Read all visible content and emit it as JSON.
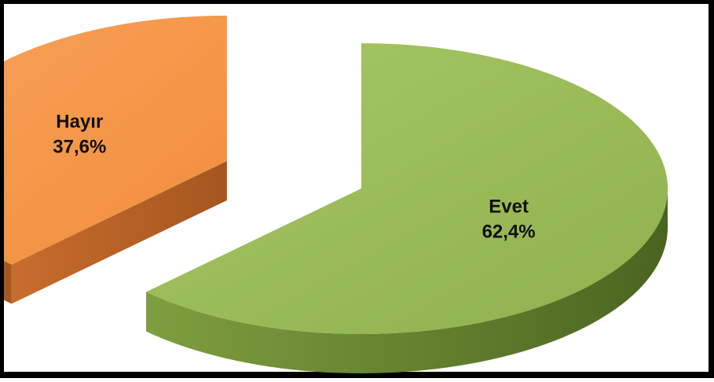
{
  "chart_data": {
    "type": "pie",
    "style": "3d-exploded",
    "categories": [
      "Evet",
      "Hayır"
    ],
    "values": [
      62.4,
      37.6
    ],
    "value_labels": [
      "62,4%",
      "37,6%"
    ],
    "colors": [
      "#9bbb59",
      "#f79646"
    ],
    "side_colors": [
      "#6b8a34",
      "#c4672a"
    ],
    "legend": "none",
    "title": ""
  }
}
